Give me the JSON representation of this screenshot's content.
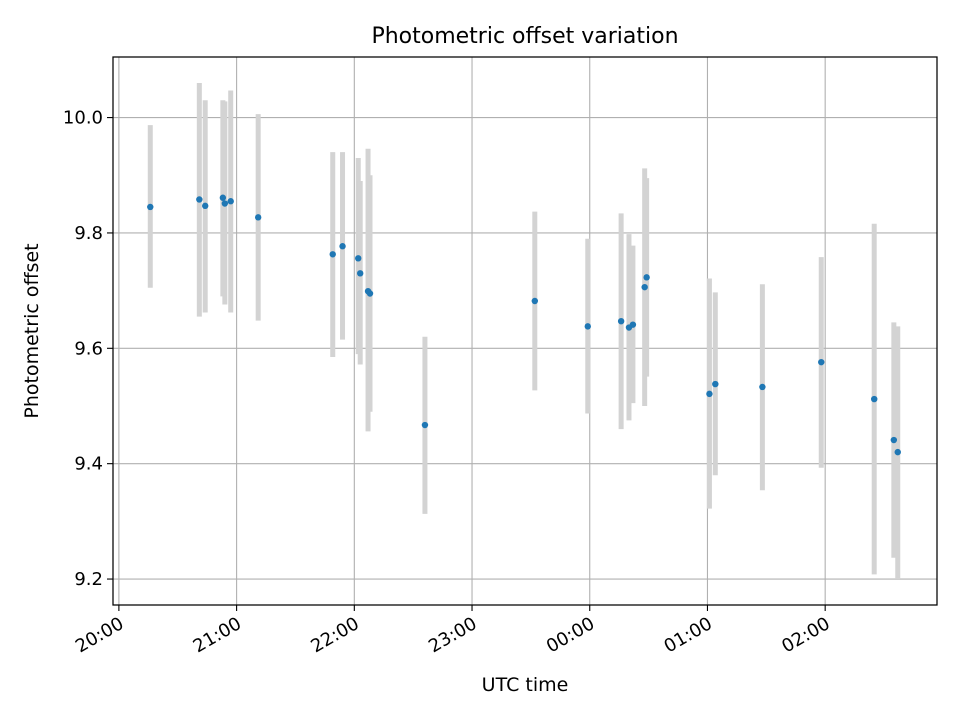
{
  "chart_data": {
    "type": "scatter",
    "title": "Photometric offset variation",
    "xlabel": "UTC time",
    "ylabel": "Photometric offset",
    "x_axis": "time",
    "x_ticks": [
      "20:00",
      "21:00",
      "22:00",
      "23:00",
      "00:00",
      "01:00",
      "02:00"
    ],
    "y_ticks": [
      "9.2",
      "9.4",
      "9.6",
      "9.8",
      "10.0"
    ],
    "xlim": [
      "19:57",
      "02:57"
    ],
    "ylim": [
      9.155,
      10.105
    ],
    "grid": true,
    "point_color": "#1f77b4",
    "errorbar_color": "#d3d3d3",
    "points": [
      {
        "time": "20:16",
        "y": 9.845,
        "ylo": 9.705,
        "yhi": 9.987
      },
      {
        "time": "20:41",
        "y": 9.858,
        "ylo": 9.655,
        "yhi": 10.06
      },
      {
        "time": "20:44",
        "y": 9.847,
        "ylo": 9.662,
        "yhi": 10.03
      },
      {
        "time": "20:53",
        "y": 9.861,
        "ylo": 9.69,
        "yhi": 10.03
      },
      {
        "time": "20:54",
        "y": 9.851,
        "ylo": 9.676,
        "yhi": 10.028
      },
      {
        "time": "20:57",
        "y": 9.855,
        "ylo": 9.662,
        "yhi": 10.047
      },
      {
        "time": "21:11",
        "y": 9.827,
        "ylo": 9.648,
        "yhi": 10.006
      },
      {
        "time": "21:49",
        "y": 9.763,
        "ylo": 9.585,
        "yhi": 9.94
      },
      {
        "time": "21:54",
        "y": 9.777,
        "ylo": 9.615,
        "yhi": 9.94
      },
      {
        "time": "22:02",
        "y": 9.756,
        "ylo": 9.59,
        "yhi": 9.93
      },
      {
        "time": "22:03",
        "y": 9.73,
        "ylo": 9.572,
        "yhi": 9.89
      },
      {
        "time": "22:07",
        "y": 9.699,
        "ylo": 9.456,
        "yhi": 9.946
      },
      {
        "time": "22:08",
        "y": 9.695,
        "ylo": 9.49,
        "yhi": 9.9
      },
      {
        "time": "22:36",
        "y": 9.467,
        "ylo": 9.313,
        "yhi": 9.62
      },
      {
        "time": "23:32",
        "y": 9.682,
        "ylo": 9.527,
        "yhi": 9.837
      },
      {
        "time": "23:59",
        "y": 9.638,
        "ylo": 9.487,
        "yhi": 9.79
      },
      {
        "time": "00:16",
        "y": 9.647,
        "ylo": 9.46,
        "yhi": 9.834
      },
      {
        "time": "00:20",
        "y": 9.636,
        "ylo": 9.475,
        "yhi": 9.798
      },
      {
        "time": "00:22",
        "y": 9.641,
        "ylo": 9.505,
        "yhi": 9.778
      },
      {
        "time": "00:28",
        "y": 9.706,
        "ylo": 9.5,
        "yhi": 9.912
      },
      {
        "time": "00:29",
        "y": 9.723,
        "ylo": 9.551,
        "yhi": 9.895
      },
      {
        "time": "01:01",
        "y": 9.521,
        "ylo": 9.322,
        "yhi": 9.721
      },
      {
        "time": "01:04",
        "y": 9.538,
        "ylo": 9.38,
        "yhi": 9.697
      },
      {
        "time": "01:28",
        "y": 9.533,
        "ylo": 9.354,
        "yhi": 9.711
      },
      {
        "time": "01:58",
        "y": 9.576,
        "ylo": 9.393,
        "yhi": 9.758
      },
      {
        "time": "02:25",
        "y": 9.512,
        "ylo": 9.208,
        "yhi": 9.816
      },
      {
        "time": "02:35",
        "y": 9.441,
        "ylo": 9.237,
        "yhi": 9.645
      },
      {
        "time": "02:37",
        "y": 9.42,
        "ylo": 9.2,
        "yhi": 9.638
      }
    ]
  }
}
